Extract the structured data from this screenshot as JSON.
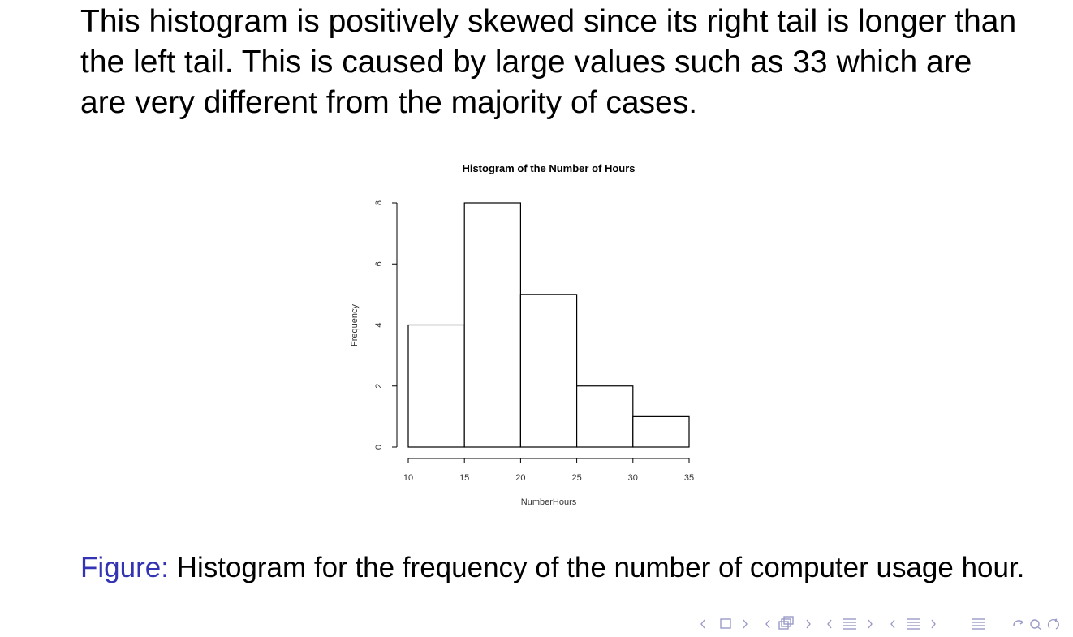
{
  "slide": {
    "intro_text": "This histogram is positively skewed since its right tail is longer than the left tail. This is caused by large values such as 33 which are are very different from the majority of cases.",
    "caption_label": "Figure:",
    "caption_text": "Histogram for the frequency of the number of computer usage hour.",
    "caption_label_color": "#3333b3",
    "nav_color": "#9a9ac8",
    "nav_icons": [
      "nav-arrow-left-icon",
      "frame-icon",
      "nav-arrow-right-icon",
      "subsection-icon",
      "section-icon",
      "align-icon",
      "search-icon",
      "undo-icon"
    ]
  },
  "chart_data": {
    "type": "bar",
    "title": "Histogram of the Number of Hours",
    "xlabel": "NumberHours",
    "ylabel": "Frequency",
    "bins": [
      {
        "from": 10,
        "to": 15,
        "count": 4
      },
      {
        "from": 15,
        "to": 20,
        "count": 8
      },
      {
        "from": 20,
        "to": 25,
        "count": 5
      },
      {
        "from": 25,
        "to": 30,
        "count": 2
      },
      {
        "from": 30,
        "to": 35,
        "count": 1
      }
    ],
    "xticks": [
      10,
      15,
      20,
      25,
      30,
      35
    ],
    "yticks": [
      0,
      2,
      4,
      6,
      8
    ],
    "xlim": [
      10,
      35
    ],
    "ylim": [
      0,
      8
    ],
    "grid": false,
    "bar_fill": "#ffffff",
    "bar_stroke": "#000000"
  }
}
